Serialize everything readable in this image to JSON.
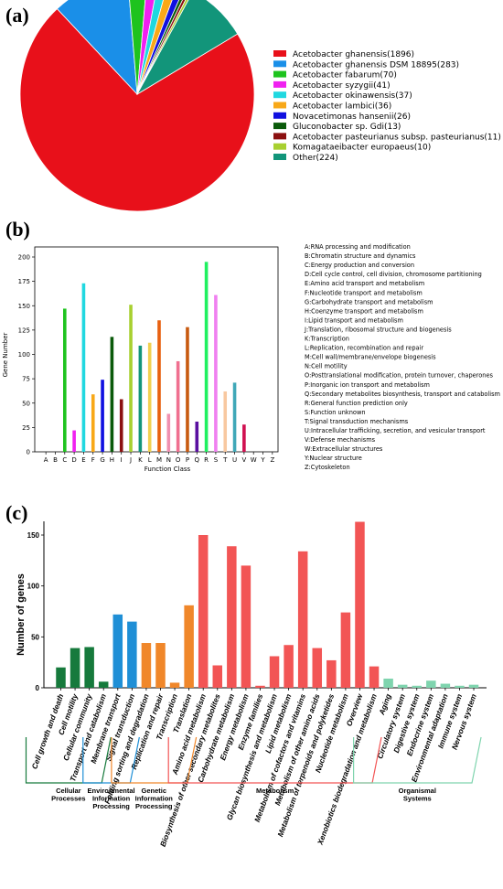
{
  "chart_data": [
    {
      "panel": "(a)",
      "type": "pie",
      "labels": [
        "Acetobacter ghanensis(1896)",
        "Acetobacter ghanensis DSM 18895(283)",
        "Acetobacter fabarum(70)",
        "Acetobacter syzygii(41)",
        "Acetobacter okinawensis(37)",
        "Acetobacter lambici(36)",
        "Novacetimonas hansenii(26)",
        "Gluconobacter sp. Gdi(13)",
        "Acetobacter pasteurianus subsp. pasteurianus(11)",
        "Komagataeibacter europaeus(10)",
        "Other(224)"
      ],
      "values": [
        1896,
        283,
        70,
        41,
        37,
        36,
        26,
        13,
        11,
        10,
        224
      ],
      "colors": [
        "#e8101a",
        "#1a8fe8",
        "#1ec31e",
        "#f020f0",
        "#20d8e0",
        "#f8a818",
        "#1010e0",
        "#0a5a0a",
        "#8b1010",
        "#a8d030",
        "#12957a"
      ],
      "legend_position": "right"
    },
    {
      "panel": "(b)",
      "type": "bar",
      "categories": [
        "A",
        "B",
        "C",
        "D",
        "E",
        "F",
        "G",
        "H",
        "I",
        "J",
        "K",
        "L",
        "M",
        "N",
        "O",
        "P",
        "Q",
        "R",
        "S",
        "T",
        "U",
        "V",
        "W",
        "Y",
        "Z"
      ],
      "values": [
        0,
        0,
        147,
        22,
        173,
        59,
        74,
        118,
        54,
        151,
        109,
        112,
        135,
        39,
        93,
        128,
        31,
        195,
        161,
        62,
        71,
        28,
        0,
        0,
        0
      ],
      "colors": [
        "#e8101a",
        "#1a8fe8",
        "#1ec31e",
        "#f020f0",
        "#20d8e0",
        "#f8a818",
        "#1010e0",
        "#0a5a0a",
        "#8b1010",
        "#a8d030",
        "#12957a",
        "#f0d050",
        "#e86010",
        "#f090b0",
        "#f07090",
        "#c85a10",
        "#5a10a0",
        "#20f060",
        "#f080f0",
        "#f8c8a0",
        "#40a8b8",
        "#d01050",
        "#000000",
        "#000000",
        "#000000"
      ],
      "xlabel": "Function Class",
      "ylabel": "Gene Number",
      "ylim": [
        0,
        210
      ],
      "yticks": [
        0,
        25,
        50,
        75,
        100,
        125,
        150,
        175,
        200
      ],
      "definitions": [
        "A:RNA processing and modification",
        "B:Chromatin structure and dynamics",
        "C:Energy production and conversion",
        "D:Cell cycle control, cell division, chromosome partitioning",
        "E:Amino acid transport and metabolism",
        "F:Nucleotide transport and metabolism",
        "G:Carbohydrate transport and metabolism",
        "H:Coenzyme transport and metabolism",
        "I:Lipid transport and metabolism",
        "J:Translation, ribosomal structure and biogenesis",
        "K:Transcription",
        "L:Replication, recombination and repair",
        "M:Cell wall/membrane/envelope biogenesis",
        "N:Cell motility",
        "O:Posttranslational modification, protein turnover, chaperones",
        "P:Inorganic ion transport and metabolism",
        "Q:Secondary metabolites biosynthesis, transport and catabolism",
        "R:General function prediction only",
        "S:Function unknown",
        "T:Signal transduction mechanisms",
        "U:Intracellular trafficking, secretion, and vesicular transport",
        "V:Defense mechanisms",
        "W:Extracellular structures",
        "Y:Nuclear structure",
        "Z:Cytoskeleton"
      ]
    },
    {
      "panel": "(c)",
      "type": "bar",
      "categories": [
        "Cell growth and death",
        "Cell motility",
        "Cellular community",
        "Transport and catabolism",
        "Membrane transport",
        "Signal transduction",
        "Folding sorting and degradation",
        "Replication and repair",
        "Transcription",
        "Translation",
        "Amino acid metabolism",
        "Biosynthesis of other secondary metabolites",
        "Carbohydrate metabolism",
        "Energy metabolism",
        "Enzyme families",
        "Glycan biosynthesis and metabolism",
        "Lipid metabolism",
        "Metabolism of cofactors and vitamins",
        "Metabolism of other amino acids",
        "Metabolism of terpenoids and polyketides",
        "Nucleotide metabolism",
        "Overview",
        "Xenobiotics biodegradation and metabolism",
        "Aging",
        "Circulatory system",
        "Digestive system",
        "Endocrine system",
        "Environmental adaptation",
        "Immune system",
        "Nervous system"
      ],
      "values": [
        20,
        39,
        40,
        6,
        72,
        65,
        44,
        44,
        5,
        81,
        150,
        22,
        139,
        120,
        2,
        31,
        42,
        134,
        39,
        27,
        74,
        163,
        21,
        9,
        3,
        2,
        7,
        4,
        2,
        3
      ],
      "groups": [
        "Cellular Processes",
        "Cellular Processes",
        "Cellular Processes",
        "Cellular Processes",
        "Environmental Information Processing",
        "Environmental Information Processing",
        "Genetic Information Processing",
        "Genetic Information Processing",
        "Genetic Information Processing",
        "Genetic Information Processing",
        "Metabolism",
        "Metabolism",
        "Metabolism",
        "Metabolism",
        "Metabolism",
        "Metabolism",
        "Metabolism",
        "Metabolism",
        "Metabolism",
        "Metabolism",
        "Metabolism",
        "Metabolism",
        "Metabolism",
        "Organismal Systems",
        "Organismal Systems",
        "Organismal Systems",
        "Organismal Systems",
        "Organismal Systems",
        "Organismal Systems",
        "Organismal Systems"
      ],
      "group_colors": {
        "Cellular Processes": "#167a3c",
        "Environmental Information Processing": "#1f8fd6",
        "Genetic Information Processing": "#f0872a",
        "Metabolism": "#f25555",
        "Organismal Systems": "#7fd4ae"
      },
      "group_labels": [
        {
          "key": "Cellular Processes",
          "lines": [
            "Cellular",
            "Processes"
          ]
        },
        {
          "key": "Environmental Information Processing",
          "lines": [
            "Environmental",
            "Information",
            "Processing"
          ]
        },
        {
          "key": "Genetic Information Processing",
          "lines": [
            "Genetic",
            "Information",
            "Processing"
          ]
        },
        {
          "key": "Metabolism",
          "lines": [
            "Metabolism"
          ]
        },
        {
          "key": "Organismal Systems",
          "lines": [
            "Organismal",
            "Systems"
          ]
        }
      ],
      "ylabel": "Number of genes",
      "ylim": [
        0,
        170
      ],
      "yticks": [
        0,
        50,
        100,
        150
      ]
    }
  ]
}
